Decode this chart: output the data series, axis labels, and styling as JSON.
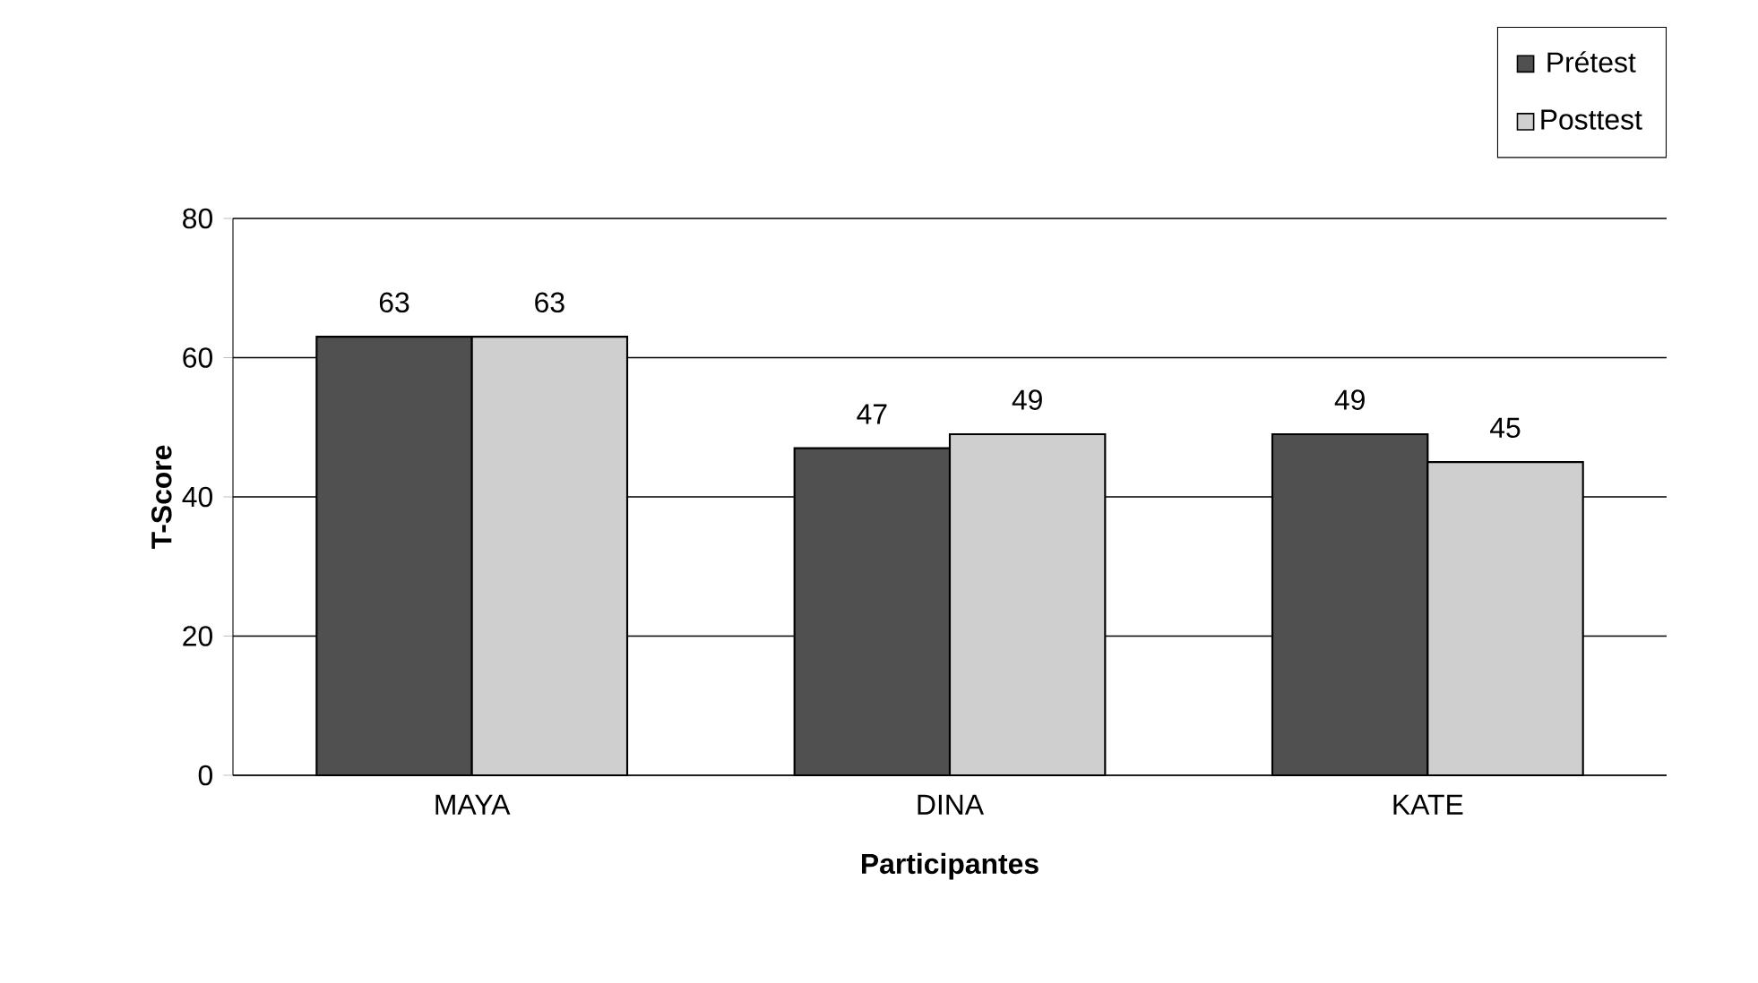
{
  "chart_data": {
    "type": "bar",
    "xlabel": "Participantes",
    "ylabel": "T-Score",
    "categories": [
      "MAYA",
      "DINA",
      "KATE"
    ],
    "series": [
      {
        "name": "Prétest",
        "color": "#505050",
        "values": [
          63,
          47,
          49
        ]
      },
      {
        "name": "Posttest",
        "color": "#cfcfcf",
        "values": [
          63,
          49,
          45
        ]
      }
    ],
    "ylim": [
      0,
      80
    ],
    "yticks": [
      0,
      20,
      40,
      60,
      80
    ],
    "grid": "y",
    "legend": "top right",
    "data_labels": true
  }
}
